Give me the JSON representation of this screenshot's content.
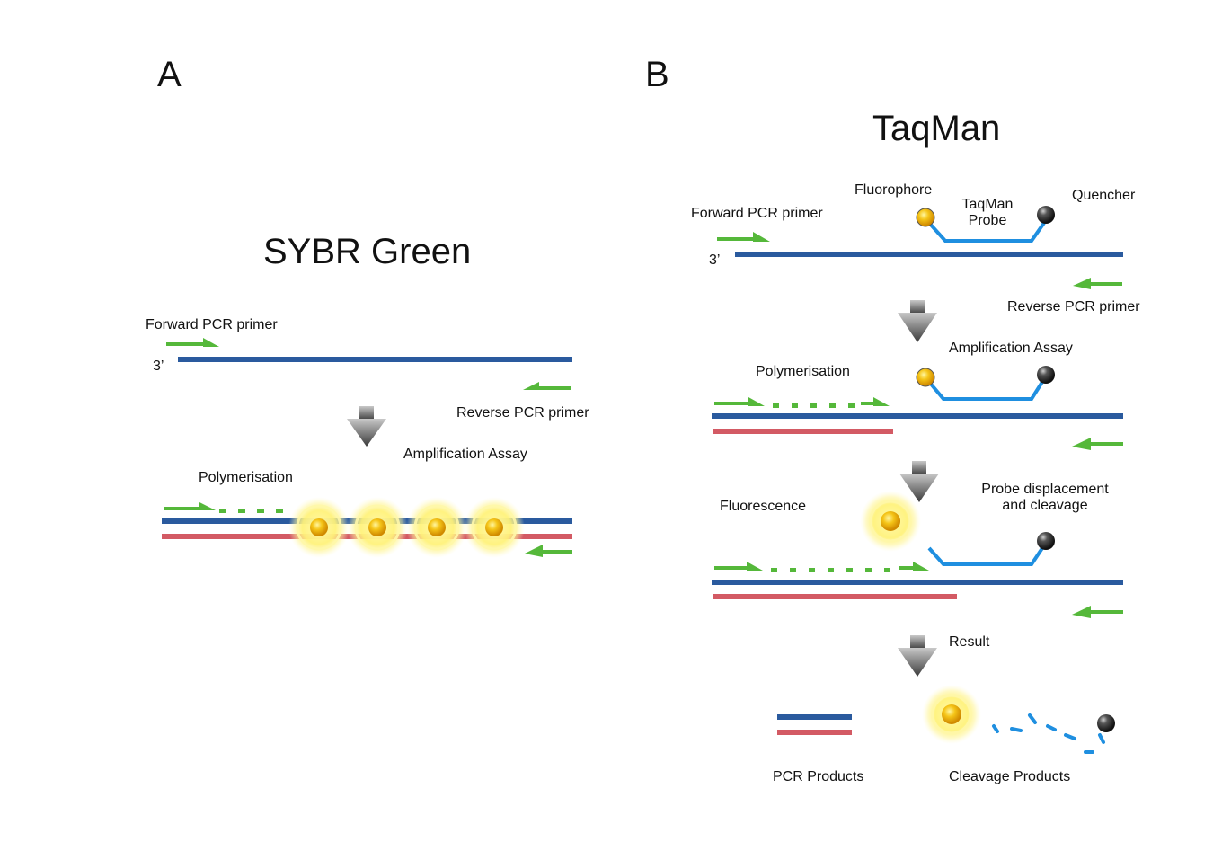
{
  "colors": {
    "dna_blue": "#2a5a9e",
    "dna_red": "#d35a64",
    "primer_green": "#55b83a",
    "probe_blue": "#1f8fe0",
    "arrow_gray": "#555555",
    "glow_yellow": "#fff27a"
  },
  "panel_a": {
    "letter": "A",
    "title": "SYBR Green",
    "forward_primer": "Forward PCR primer",
    "three_prime": "3’",
    "reverse_primer": "Reverse PCR primer",
    "amplification": "Amplification Assay",
    "polymerisation": "Polymerisation"
  },
  "panel_b": {
    "letter": "B",
    "title": "TaqMan",
    "fluorophore": "Fluorophore",
    "taqman_probe_line1": "TaqMan",
    "taqman_probe_line2": "Probe",
    "quencher": "Quencher",
    "forward_primer": "Forward PCR primer",
    "three_prime": "3’",
    "reverse_primer": "Reverse PCR primer",
    "amplification": "Amplification Assay",
    "polymerisation": "Polymerisation",
    "fluorescence": "Fluorescence",
    "probe_disp_line1": "Probe displacement",
    "probe_disp_line2": "and cleavage",
    "result": "Result",
    "pcr_products": "PCR Products",
    "cleavage_products": "Cleavage Products"
  }
}
